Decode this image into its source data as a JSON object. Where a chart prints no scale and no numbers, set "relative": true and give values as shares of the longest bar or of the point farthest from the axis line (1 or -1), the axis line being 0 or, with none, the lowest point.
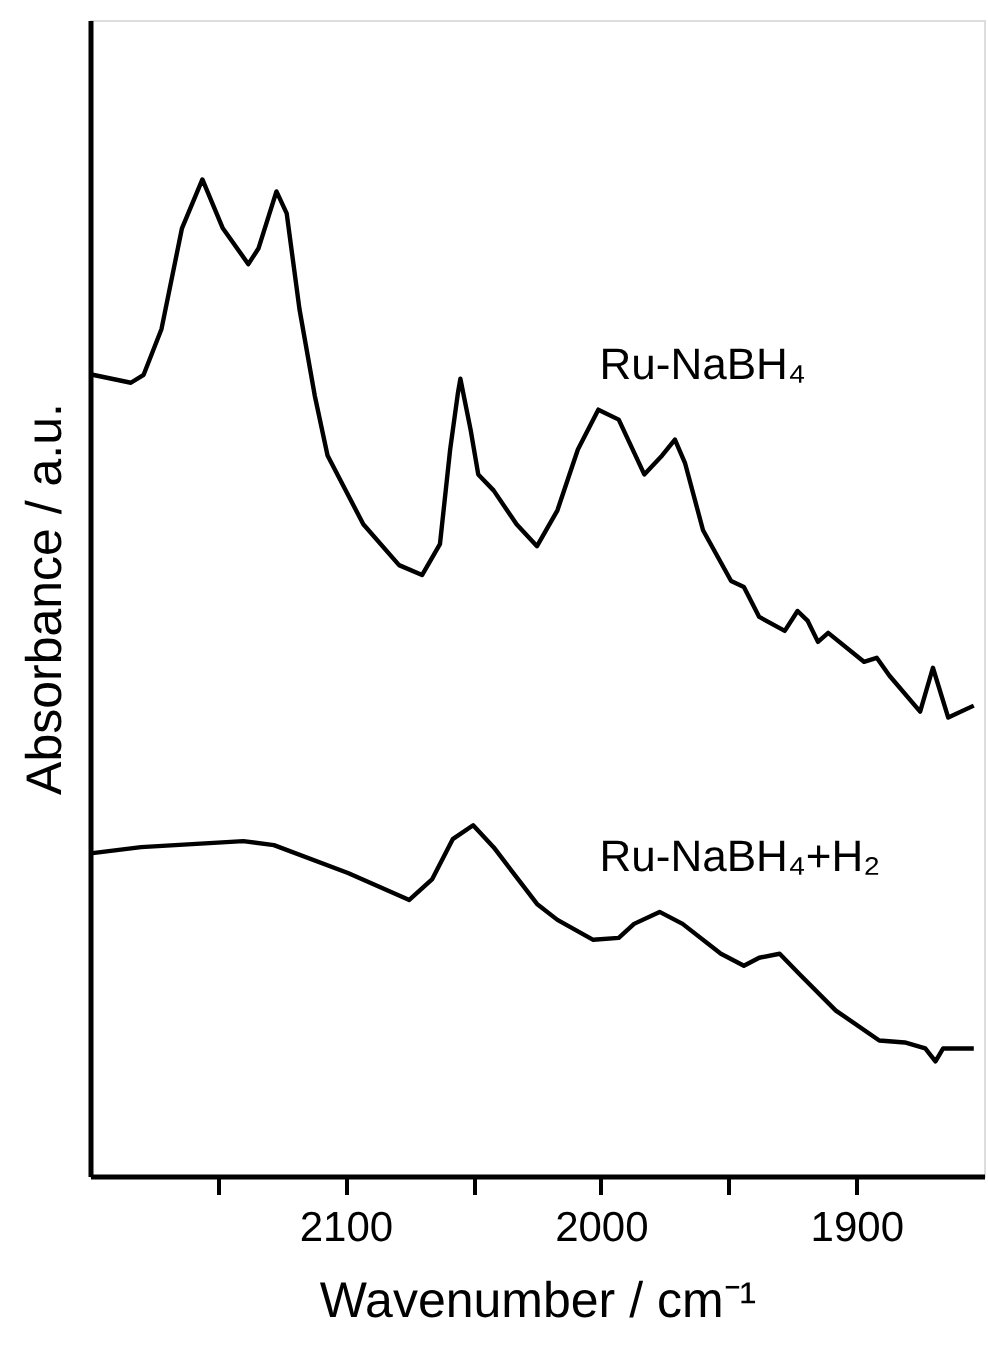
{
  "chart_data": {
    "type": "line",
    "xlabel": "Wavenumber / cm⁻¹",
    "ylabel": "Absorbance / a.u.",
    "relative": true,
    "xlim": [
      2200,
      1850
    ],
    "xticks": [
      {
        "value": 2150,
        "label": null
      },
      2100,
      {
        "value": 2050,
        "label": null
      },
      2000,
      {
        "value": 1950,
        "label": null
      },
      1900
    ],
    "grid": false,
    "marker": "none",
    "line_style": "solid",
    "series": [
      {
        "name": "Ru-NaBH₄",
        "color": "#000000",
        "x": [
          2199,
          2184,
          2179,
          2172,
          2164,
          2156,
          2148,
          2138,
          2134,
          2127,
          2123,
          2118,
          2112,
          2107,
          2093,
          2079,
          2070,
          2063,
          2059,
          2056,
          2055,
          2051,
          2048,
          2042,
          2033,
          2025,
          2017,
          2009,
          2001,
          1993,
          1983,
          1976,
          1971,
          1967,
          1960,
          1949,
          1944,
          1938,
          1928,
          1923,
          1919,
          1915,
          1911,
          1897,
          1892,
          1887,
          1875,
          1870,
          1864,
          1854
        ],
        "values": [
          0.804,
          0.796,
          0.804,
          0.85,
          0.951,
          1.0,
          0.951,
          0.915,
          0.931,
          0.988,
          0.966,
          0.87,
          0.783,
          0.723,
          0.654,
          0.613,
          0.603,
          0.634,
          0.729,
          0.785,
          0.8,
          0.749,
          0.704,
          0.688,
          0.654,
          0.632,
          0.668,
          0.729,
          0.769,
          0.759,
          0.704,
          0.723,
          0.739,
          0.715,
          0.648,
          0.597,
          0.591,
          0.561,
          0.547,
          0.567,
          0.557,
          0.536,
          0.545,
          0.516,
          0.52,
          0.502,
          0.466,
          0.51,
          0.46,
          0.472
        ]
      },
      {
        "name": "Ru-NaBH₄+H₂",
        "color": "#000000",
        "x": [
          2199,
          2180,
          2140,
          2128,
          2099,
          2075,
          2066,
          2058,
          2050,
          2042,
          2025,
          2017,
          2003,
          1993,
          1987,
          1977,
          1968,
          1953,
          1944,
          1938,
          1930,
          1922,
          1908,
          1891,
          1881,
          1873,
          1869,
          1866,
          1854
        ],
        "values": [
          0.324,
          0.33,
          0.336,
          0.332,
          0.304,
          0.277,
          0.298,
          0.338,
          0.352,
          0.33,
          0.273,
          0.257,
          0.237,
          0.239,
          0.253,
          0.265,
          0.253,
          0.223,
          0.211,
          0.219,
          0.223,
          0.202,
          0.166,
          0.136,
          0.134,
          0.128,
          0.115,
          0.128,
          0.128
        ]
      }
    ]
  }
}
